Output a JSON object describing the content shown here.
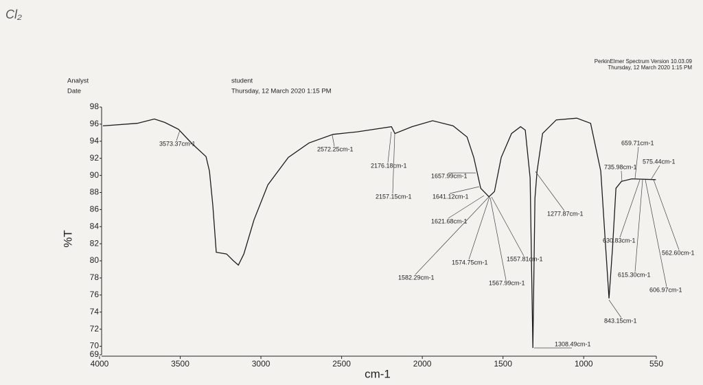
{
  "note_handwritten": "Cl₂",
  "header": {
    "analyst_label": "Analyst",
    "date_label": "Date",
    "analyst": "student",
    "date": "Thursday, 12 March 2020 1:15 PM",
    "software": "PerkinElmer Spectrum Version 10.03.09",
    "printed": "Thursday, 12 March 2020 1:15 PM"
  },
  "chart_data": {
    "type": "line",
    "xlabel": "cm-1",
    "ylabel": "%T",
    "color": "#1a1a1a",
    "xlim": [
      4000,
      550
    ],
    "xticks": [
      4000,
      3500,
      3000,
      2500,
      2000,
      1500,
      1000,
      550
    ],
    "ylim": [
      69,
      98
    ],
    "yticks": [
      69,
      70,
      72,
      74,
      76,
      78,
      80,
      82,
      84,
      86,
      88,
      90,
      92,
      94,
      96,
      98
    ],
    "x": [
      3979,
      3766,
      3660,
      3596,
      3511,
      3426,
      3340,
      3319,
      3298,
      3277,
      3213,
      3170,
      3140,
      3106,
      3043,
      2957,
      2830,
      2702,
      2553,
      2404,
      2191,
      2170,
      2064,
      1936,
      1809,
      1723,
      1681,
      1638,
      1587,
      1553,
      1511,
      1447,
      1391,
      1362,
      1332,
      1315,
      1302,
      1289,
      1255,
      1170,
      1043,
      957,
      894,
      864,
      843,
      821,
      800,
      766,
      702,
      553
    ],
    "values": [
      95.8,
      96.1,
      96.6,
      96.2,
      95.4,
      93.7,
      92.2,
      90.5,
      86.5,
      81.0,
      80.8,
      80.0,
      79.5,
      80.8,
      84.8,
      88.9,
      92.1,
      93.8,
      94.8,
      95.1,
      95.7,
      94.9,
      95.7,
      96.4,
      95.8,
      94.5,
      92.1,
      88.5,
      87.5,
      88.1,
      92.1,
      94.9,
      95.7,
      95.3,
      89.7,
      69.8,
      87.3,
      90.5,
      94.9,
      96.5,
      96.7,
      96.1,
      90.5,
      81.6,
      75.6,
      81.6,
      88.5,
      89.3,
      89.6,
      89.5
    ],
    "annotations": [
      "3573.37cm-1",
      "2572.25cm-1",
      "2176.18cm-1",
      "2157.15cm-1",
      "1657.99cm-1",
      "1641.12cm-1",
      "1621.68cm-1",
      "1582.29cm-1",
      "1574.75cm-1",
      "1567.99cm-1",
      "1557.81cm-1",
      "1308.49cm-1",
      "1277.87cm-1",
      "843.15cm-1",
      "659.71cm-1",
      "735.98cm-1",
      "575.44cm-1",
      "630.83cm-1",
      "615.30cm-1",
      "606.97cm-1",
      "562.60cm-1"
    ]
  }
}
